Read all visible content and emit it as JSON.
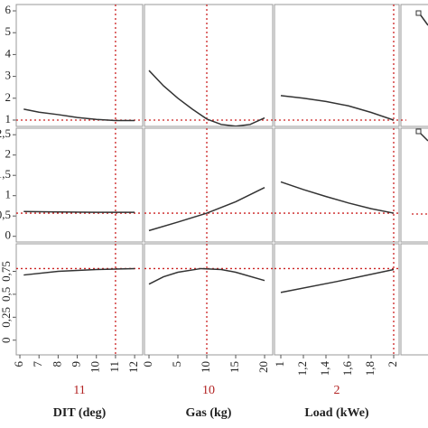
{
  "chart_data": {
    "type": "profiler",
    "factors": [
      {
        "label": "DIT (deg)",
        "current": 11,
        "xlim": [
          5.81,
          12.42
        ],
        "xticks": [
          6,
          7,
          8,
          9,
          10,
          11,
          12
        ]
      },
      {
        "label": "Gas (kg)",
        "current": 10,
        "xlim": [
          -0.78,
          21.4
        ],
        "xticks": [
          0,
          5,
          10,
          15,
          20
        ]
      },
      {
        "label": "Load (kWe)",
        "current": 2,
        "xlim": [
          0.944,
          2.048
        ],
        "xticks": [
          1,
          {
            "value": 1.2,
            "label": "1,2"
          },
          {
            "value": 1.4,
            "label": "1,4"
          },
          {
            "value": 1.6,
            "label": "1,6"
          },
          {
            "value": 1.8,
            "label": "1,8"
          },
          2
        ]
      }
    ],
    "responses": [
      {
        "ylim": [
          0.71,
          6.29
        ],
        "current": 1.0,
        "yticks": [
          1,
          2,
          3,
          4,
          5,
          6
        ],
        "series": [
          {
            "x": [
              6.2,
              7,
              8,
              9,
              10,
              11,
              12
            ],
            "values": [
              1.5,
              1.36,
              1.25,
              1.12,
              1.03,
              0.98,
              0.98
            ]
          },
          {
            "x": [
              0,
              2.5,
              5,
              7.5,
              10,
              12.5,
              15,
              17.5,
              20
            ],
            "values": [
              3.27,
              2.57,
              2.0,
              1.5,
              1.05,
              0.8,
              0.72,
              0.8,
              1.1
            ]
          },
          {
            "x": [
              1,
              1.2,
              1.4,
              1.6,
              1.8,
              2
            ],
            "values": [
              2.12,
              2.0,
              1.85,
              1.65,
              1.35,
              1.0
            ]
          }
        ]
      },
      {
        "ylim": [
          -0.14,
          2.66
        ],
        "current": 0.57,
        "yticks": [
          0,
          {
            "value": 0.5,
            "label": "0,5"
          },
          1,
          {
            "value": 1.5,
            "label": "1,5"
          },
          2,
          {
            "value": 2.5,
            "label": "2,5"
          }
        ],
        "series": [
          {
            "x": [
              6.2,
              8,
              10,
              12
            ],
            "values": [
              0.61,
              0.6,
              0.59,
              0.59
            ]
          },
          {
            "x": [
              0,
              5,
              10,
              15,
              20
            ],
            "values": [
              0.14,
              0.35,
              0.57,
              0.85,
              1.2
            ]
          },
          {
            "x": [
              1,
              1.2,
              1.4,
              1.6,
              1.8,
              2
            ],
            "values": [
              1.34,
              1.15,
              0.98,
              0.82,
              0.68,
              0.57
            ]
          }
        ]
      },
      {
        "ylim": [
          -0.16,
          1.05
        ],
        "current": 0.78,
        "yticks": [
          0,
          {
            "value": 0.25,
            "label": "0,25"
          },
          {
            "value": 0.5,
            "label": "0,5"
          },
          {
            "value": 0.75,
            "label": "0,75"
          }
        ],
        "series": [
          {
            "x": [
              6.2,
              8,
              10,
              12
            ],
            "values": [
              0.71,
              0.75,
              0.77,
              0.78
            ]
          },
          {
            "x": [
              0,
              2.5,
              5,
              9,
              12.5,
              15,
              20
            ],
            "values": [
              0.61,
              0.69,
              0.74,
              0.78,
              0.77,
              0.74,
              0.65
            ]
          },
          {
            "x": [
              1,
              1.5,
              2
            ],
            "values": [
              0.52,
              0.64,
              0.77
            ]
          }
        ]
      }
    ]
  }
}
